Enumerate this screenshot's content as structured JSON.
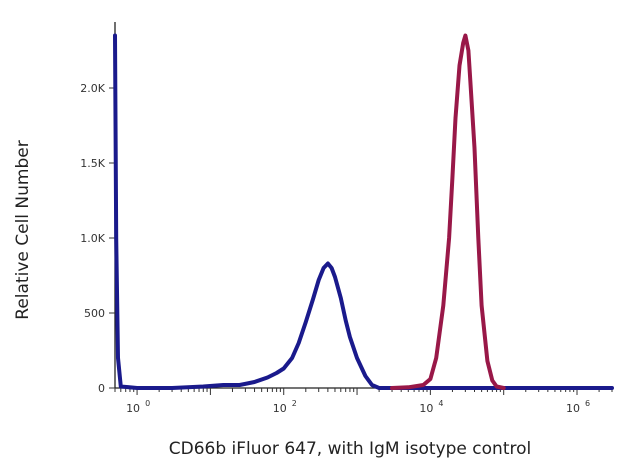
{
  "chart_data": {
    "type": "line",
    "title": "",
    "xlabel": "CD66b iFluor 647, with IgM isotype control",
    "ylabel": "Relative Cell Number",
    "x_scale": "log",
    "xlim": [
      0.5,
      3000000
    ],
    "ylim": [
      0,
      2.4
    ],
    "y_unit": "k",
    "x_ticks": [
      {
        "value": 1,
        "base": "10",
        "exp": "0"
      },
      {
        "value": 100,
        "base": "10",
        "exp": "2"
      },
      {
        "value": 10000,
        "base": "10",
        "exp": "4"
      },
      {
        "value": 1000000,
        "base": "10",
        "exp": "6"
      }
    ],
    "y_ticks": [
      {
        "value": 0,
        "label": "0"
      },
      {
        "value": 0.5,
        "label": "500"
      },
      {
        "value": 1.0,
        "label": "1.0K"
      },
      {
        "value": 1.5,
        "label": "1.5K"
      },
      {
        "value": 2.0,
        "label": "2.0K"
      }
    ],
    "grid": false,
    "legend": "none",
    "series": [
      {
        "color": "#1a1a8c",
        "x": [
          0.5,
          0.52,
          0.55,
          0.6,
          1,
          3,
          8,
          15,
          25,
          40,
          60,
          80,
          100,
          130,
          160,
          200,
          250,
          300,
          350,
          400,
          450,
          500,
          600,
          700,
          800,
          1000,
          1300,
          1600,
          2000,
          3000,
          5000,
          10000,
          100000,
          1000000,
          3000000
        ],
        "y": [
          2.35,
          1.0,
          0.2,
          0.01,
          0.0,
          0.0,
          0.01,
          0.02,
          0.02,
          0.04,
          0.07,
          0.1,
          0.13,
          0.2,
          0.3,
          0.44,
          0.59,
          0.72,
          0.8,
          0.83,
          0.8,
          0.74,
          0.6,
          0.45,
          0.34,
          0.2,
          0.08,
          0.02,
          0.0,
          0.0,
          0.0,
          0.0,
          0.0,
          0.0,
          0.0
        ]
      },
      {
        "color": "#991848",
        "x": [
          3000,
          5000,
          8000,
          10000,
          12000,
          15000,
          18000,
          20000,
          22000,
          25000,
          28000,
          30000,
          33000,
          35000,
          40000,
          45000,
          50000,
          60000,
          70000,
          80000,
          100000
        ],
        "y": [
          0.0,
          0.005,
          0.02,
          0.06,
          0.2,
          0.55,
          1.0,
          1.4,
          1.8,
          2.15,
          2.3,
          2.35,
          2.25,
          2.05,
          1.6,
          1.0,
          0.55,
          0.18,
          0.05,
          0.01,
          0.0
        ]
      }
    ]
  }
}
